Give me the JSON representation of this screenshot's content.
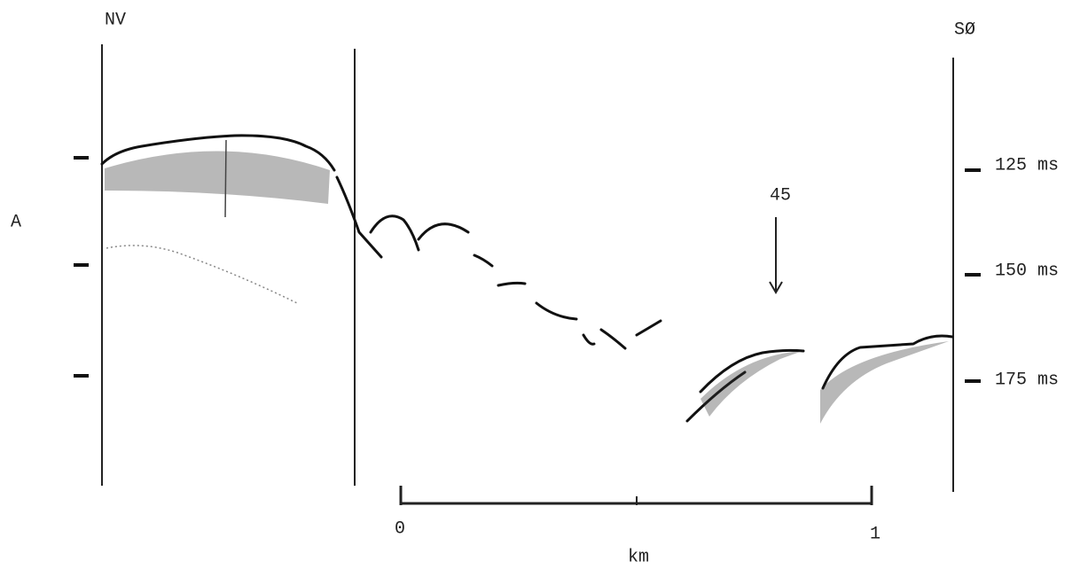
{
  "labels": {
    "left_end": "NV",
    "right_end": "SØ",
    "profile": "A",
    "marker": "45"
  },
  "time_scale": [
    "125 ms",
    "150 ms",
    "175 ms"
  ],
  "distance_scale": {
    "start": "0",
    "end": "1",
    "unit": "km"
  }
}
